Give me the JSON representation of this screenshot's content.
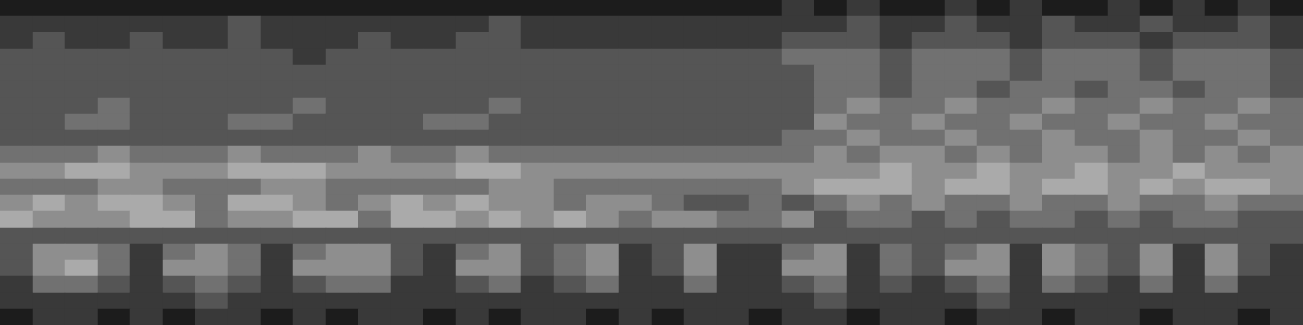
{
  "chart_data": {
    "type": "heatmap",
    "tick_labels": false,
    "zlim": [
      0,
      9
    ],
    "cells": [
      [
        1,
        1,
        1,
        1,
        1,
        1,
        1,
        1,
        1,
        1,
        1,
        1,
        1,
        1,
        1,
        1,
        1,
        1,
        1,
        1,
        1,
        1,
        1,
        1,
        2,
        1,
        2,
        1,
        1,
        2,
        1,
        2,
        1,
        1,
        2,
        1,
        2,
        1,
        2,
        1
      ],
      [
        2,
        2,
        2,
        2,
        2,
        2,
        2,
        3,
        2,
        2,
        2,
        2,
        2,
        2,
        2,
        3,
        2,
        2,
        2,
        2,
        2,
        2,
        2,
        2,
        2,
        2,
        3,
        2,
        2,
        3,
        2,
        2,
        3,
        2,
        2,
        3,
        2,
        2,
        3,
        2
      ],
      [
        2,
        3,
        2,
        2,
        3,
        2,
        2,
        3,
        2,
        2,
        2,
        3,
        2,
        2,
        3,
        3,
        2,
        2,
        2,
        2,
        2,
        2,
        2,
        2,
        3,
        3,
        3,
        2,
        3,
        3,
        3,
        2,
        3,
        3,
        3,
        2,
        3,
        3,
        3,
        2
      ],
      [
        3,
        3,
        3,
        3,
        3,
        3,
        3,
        3,
        3,
        2,
        3,
        3,
        3,
        3,
        3,
        3,
        3,
        3,
        3,
        3,
        3,
        3,
        3,
        3,
        4,
        4,
        4,
        3,
        4,
        4,
        4,
        3,
        4,
        4,
        4,
        3,
        4,
        4,
        4,
        3
      ],
      [
        3,
        3,
        3,
        3,
        3,
        3,
        3,
        3,
        3,
        3,
        3,
        3,
        3,
        3,
        3,
        3,
        3,
        3,
        3,
        3,
        3,
        3,
        3,
        3,
        3,
        4,
        4,
        3,
        4,
        4,
        4,
        3,
        4,
        4,
        4,
        3,
        4,
        4,
        4,
        3
      ],
      [
        3,
        3,
        3,
        3,
        3,
        3,
        3,
        3,
        3,
        3,
        3,
        3,
        3,
        3,
        3,
        3,
        3,
        3,
        3,
        3,
        3,
        3,
        3,
        3,
        3,
        4,
        4,
        3,
        4,
        4,
        3,
        4,
        4,
        3,
        4,
        4,
        3,
        4,
        4,
        3
      ],
      [
        3,
        3,
        3,
        4,
        3,
        3,
        3,
        3,
        3,
        4,
        3,
        3,
        3,
        3,
        3,
        4,
        3,
        3,
        3,
        3,
        3,
        3,
        3,
        3,
        3,
        4,
        5,
        4,
        4,
        5,
        4,
        4,
        5,
        4,
        4,
        5,
        4,
        4,
        5,
        4
      ],
      [
        3,
        3,
        4,
        4,
        3,
        3,
        3,
        4,
        4,
        3,
        3,
        3,
        3,
        4,
        4,
        3,
        3,
        3,
        3,
        3,
        3,
        3,
        3,
        3,
        3,
        5,
        4,
        4,
        5,
        4,
        4,
        5,
        4,
        4,
        5,
        4,
        4,
        5,
        4,
        4
      ],
      [
        3,
        3,
        3,
        3,
        3,
        3,
        3,
        3,
        3,
        3,
        3,
        3,
        3,
        3,
        3,
        3,
        3,
        3,
        3,
        3,
        3,
        3,
        3,
        3,
        4,
        4,
        5,
        4,
        4,
        5,
        4,
        4,
        5,
        4,
        4,
        5,
        4,
        4,
        5,
        4
      ],
      [
        4,
        4,
        4,
        5,
        4,
        4,
        4,
        5,
        4,
        4,
        4,
        5,
        4,
        4,
        5,
        4,
        4,
        4,
        4,
        4,
        4,
        4,
        4,
        4,
        4,
        5,
        4,
        5,
        5,
        4,
        5,
        4,
        5,
        5,
        4,
        5,
        4,
        5,
        4,
        5
      ],
      [
        5,
        5,
        6,
        6,
        5,
        5,
        5,
        6,
        6,
        6,
        5,
        5,
        5,
        5,
        6,
        6,
        5,
        5,
        5,
        5,
        5,
        5,
        5,
        5,
        5,
        5,
        5,
        6,
        5,
        5,
        6,
        5,
        5,
        6,
        5,
        5,
        6,
        5,
        5,
        5
      ],
      [
        4,
        4,
        4,
        5,
        5,
        4,
        4,
        4,
        5,
        5,
        4,
        4,
        4,
        4,
        4,
        5,
        5,
        4,
        4,
        4,
        4,
        4,
        4,
        4,
        5,
        6,
        6,
        6,
        5,
        6,
        6,
        5,
        6,
        6,
        5,
        6,
        5,
        6,
        6,
        5
      ],
      [
        5,
        6,
        5,
        6,
        6,
        5,
        4,
        6,
        6,
        5,
        4,
        5,
        6,
        5,
        6,
        5,
        5,
        4,
        5,
        5,
        4,
        3,
        3,
        4,
        3,
        4,
        5,
        4,
        5,
        4,
        4,
        5,
        4,
        4,
        5,
        4,
        4,
        5,
        4,
        4
      ],
      [
        6,
        5,
        5,
        5,
        6,
        6,
        4,
        5,
        5,
        6,
        6,
        4,
        6,
        6,
        5,
        6,
        5,
        6,
        5,
        4,
        5,
        5,
        4,
        4,
        5,
        3,
        4,
        4,
        3,
        4,
        3,
        4,
        4,
        3,
        4,
        3,
        4,
        4,
        3,
        3
      ],
      [
        3,
        3,
        3,
        3,
        3,
        3,
        3,
        3,
        3,
        3,
        3,
        3,
        3,
        3,
        3,
        3,
        3,
        3,
        3,
        3,
        3,
        3,
        3,
        3,
        3,
        3,
        3,
        3,
        3,
        3,
        3,
        3,
        3,
        3,
        3,
        3,
        3,
        3,
        3,
        3
      ],
      [
        3,
        5,
        5,
        4,
        2,
        4,
        5,
        4,
        2,
        4,
        5,
        5,
        3,
        2,
        4,
        5,
        3,
        4,
        5,
        2,
        3,
        5,
        2,
        2,
        4,
        5,
        2,
        4,
        3,
        4,
        5,
        2,
        5,
        4,
        3,
        5,
        2,
        5,
        3,
        2
      ],
      [
        3,
        5,
        6,
        4,
        2,
        5,
        5,
        4,
        2,
        5,
        5,
        5,
        3,
        2,
        5,
        5,
        3,
        4,
        5,
        2,
        3,
        5,
        2,
        2,
        5,
        5,
        2,
        4,
        3,
        5,
        5,
        2,
        5,
        4,
        3,
        5,
        2,
        5,
        3,
        2
      ],
      [
        2,
        4,
        4,
        3,
        2,
        3,
        4,
        3,
        2,
        3,
        4,
        4,
        2,
        2,
        3,
        4,
        2,
        3,
        4,
        2,
        2,
        4,
        2,
        2,
        3,
        4,
        2,
        3,
        2,
        3,
        4,
        2,
        4,
        3,
        2,
        4,
        2,
        4,
        2,
        2
      ],
      [
        2,
        2,
        2,
        2,
        2,
        2,
        3,
        2,
        2,
        2,
        2,
        2,
        2,
        2,
        2,
        2,
        2,
        2,
        2,
        2,
        2,
        2,
        2,
        2,
        2,
        3,
        2,
        2,
        2,
        2,
        3,
        2,
        2,
        2,
        2,
        2,
        2,
        2,
        2,
        2
      ],
      [
        1,
        2,
        2,
        1,
        2,
        1,
        2,
        2,
        1,
        2,
        1,
        2,
        2,
        1,
        2,
        1,
        2,
        2,
        1,
        2,
        1,
        2,
        2,
        1,
        2,
        2,
        1,
        2,
        2,
        1,
        2,
        2,
        1,
        2,
        2,
        1,
        2,
        2,
        1,
        2
      ]
    ]
  }
}
